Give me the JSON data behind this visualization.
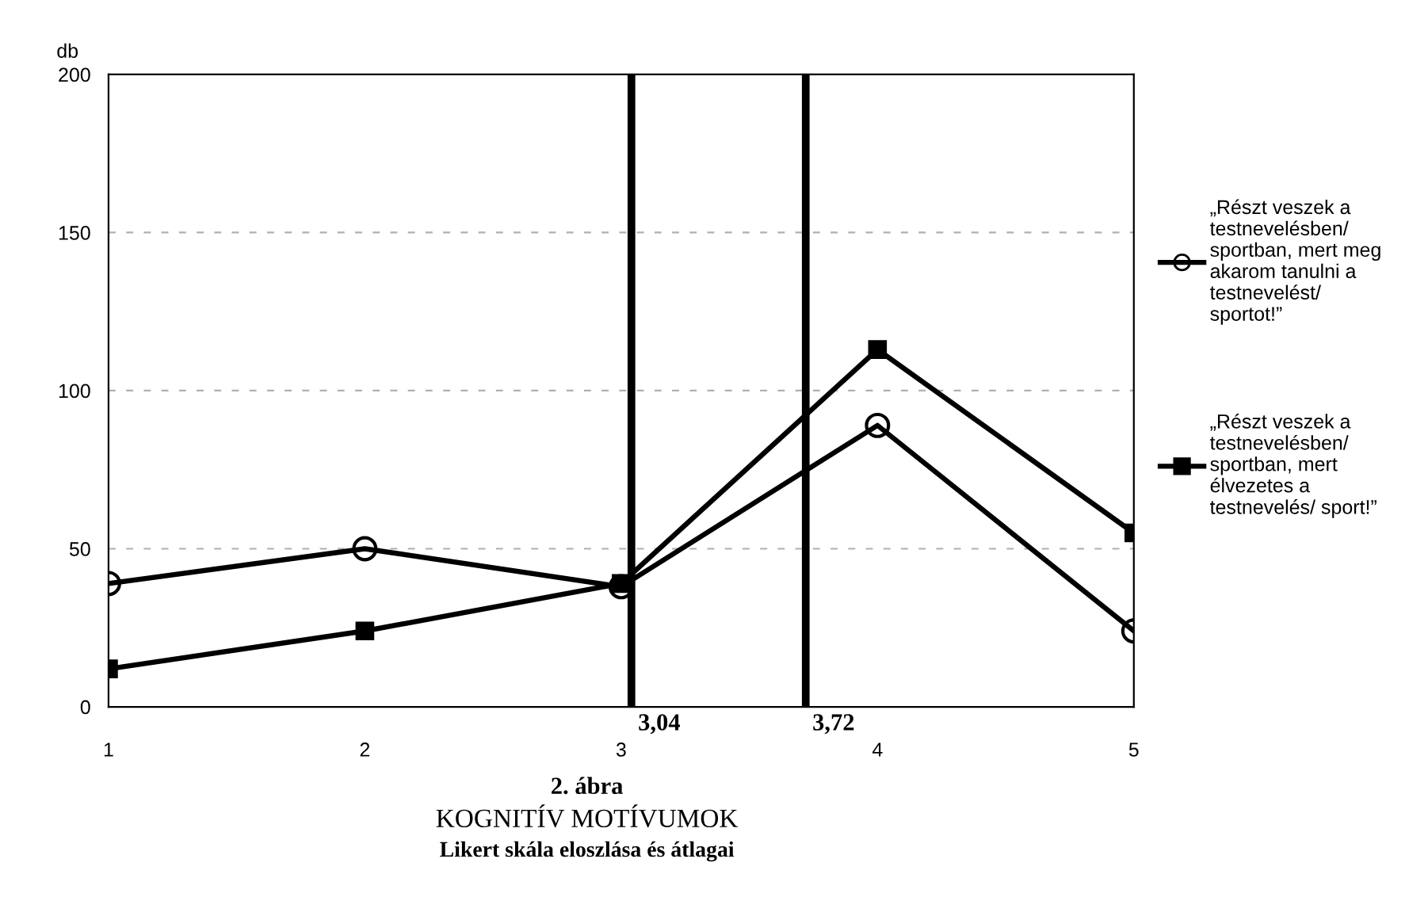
{
  "chart_data": {
    "type": "line",
    "title": "2. ábra",
    "subtitle": "KOGNITÍV MOTÍVUMOK",
    "annotations": [
      "Likert skála eloszlása és átlagai"
    ],
    "ylabel": "db",
    "x": [
      1,
      2,
      3,
      4,
      5
    ],
    "xlim": [
      1,
      5
    ],
    "xticks": [
      1,
      2,
      3,
      4,
      5
    ],
    "ylim": [
      0,
      200
    ],
    "yticks": [
      0,
      50,
      100,
      150,
      200
    ],
    "series": [
      {
        "name": "„Részt veszek a testnevelésben/ sportban, mert meg akarom tanulni a testnevelést/ sportot!”",
        "color": "#000000",
        "marker": "circle",
        "values": [
          39,
          50,
          38,
          89,
          24
        ]
      },
      {
        "name": "„Részt veszek a testnevelésben/ sportban, mert élvezetes a testnevelés/ sport!”",
        "color": "#000000",
        "marker": "square",
        "values": [
          12,
          24,
          39,
          113,
          55
        ]
      }
    ],
    "ref_lines": [
      {
        "axis": "x",
        "value": 3.04,
        "label": "3,04",
        "color": "#000000"
      },
      {
        "axis": "x",
        "value": 3.72,
        "label": "3,72",
        "color": "#000000"
      }
    ],
    "grid": "y",
    "legend": "right",
    "line_style": "solid"
  }
}
